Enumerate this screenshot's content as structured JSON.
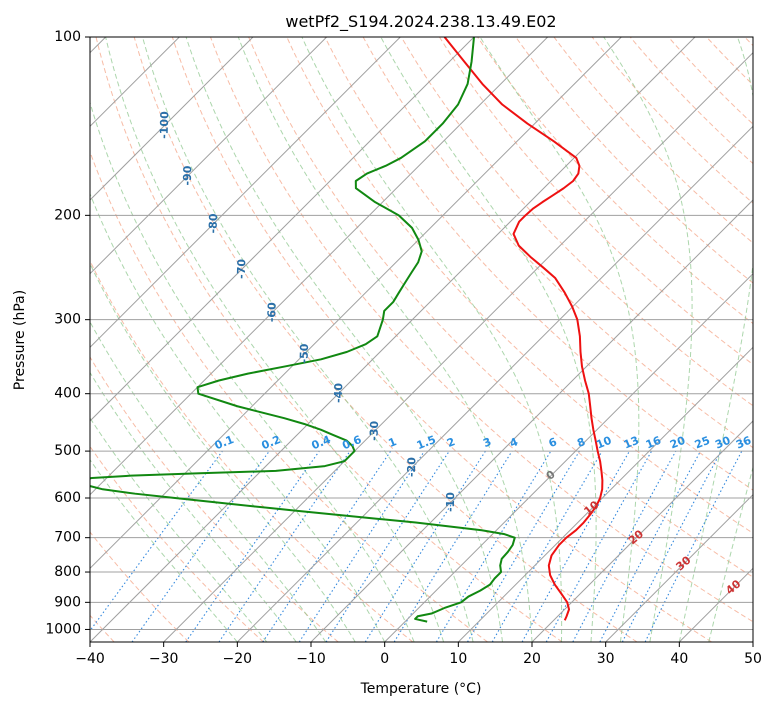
{
  "chart_data": {
    "type": "line",
    "title": "wetPf2_S194.2024.238.13.49.E02",
    "xlabel": "Temperature (°C)",
    "ylabel": "Pressure (hPa)",
    "xlim": [
      -40,
      50
    ],
    "ylim": [
      1050,
      100
    ],
    "y_scale": "log",
    "x_ticks": [
      -40,
      -30,
      -20,
      -10,
      0,
      10,
      20,
      30,
      40,
      50
    ],
    "x_tick_labels": [
      "−40",
      "−30",
      "−20",
      "−10",
      "0",
      "10",
      "20",
      "30",
      "40",
      "50"
    ],
    "y_ticks": [
      100,
      200,
      300,
      400,
      500,
      600,
      700,
      800,
      900,
      1000
    ],
    "y_tick_labels": [
      "100",
      "200",
      "300",
      "400",
      "500",
      "600",
      "700",
      "800",
      "900",
      "1000"
    ],
    "grid": true,
    "skew_t": true,
    "colors": {
      "temperature": "#ee1111",
      "dewpoint": "#118811",
      "isotherm": "#a0a0a0",
      "dry_adiabat": "#f4a080",
      "moist_adiabat": "#90c890",
      "mixing_ratio": "#3388dd",
      "isotherm_label": "#2a6fa8",
      "mixing_label": "#2a8fe0",
      "moist_label": "#cc3333",
      "zero_label": "#777777"
    },
    "series": [
      {
        "key": "temperature",
        "pressure": [
          965,
          950,
          925,
          900,
          870,
          840,
          810,
          780,
          750,
          720,
          700,
          680,
          660,
          640,
          620,
          600,
          580,
          560,
          540,
          520,
          500,
          480,
          460,
          440,
          420,
          400,
          380,
          360,
          340,
          320,
          300,
          285,
          270,
          255,
          245,
          235,
          225,
          215,
          205,
          200,
          195,
          190,
          185,
          180,
          175,
          170,
          165,
          160,
          150,
          140,
          130,
          120,
          110,
          100
        ],
        "temp": [
          21.5,
          21.2,
          20.6,
          19.4,
          17.4,
          15.3,
          13.4,
          11.9,
          10.9,
          10.5,
          10.5,
          10.8,
          10.8,
          10.6,
          10.3,
          9.7,
          8.8,
          7.6,
          6.2,
          4.7,
          3.0,
          1.3,
          -0.5,
          -2.3,
          -4.1,
          -6.0,
          -8.3,
          -10.6,
          -12.8,
          -15.0,
          -17.6,
          -20.1,
          -23.0,
          -26.3,
          -29.3,
          -32.5,
          -35.6,
          -37.9,
          -38.8,
          -38.8,
          -38.7,
          -38.3,
          -37.8,
          -37.3,
          -37.0,
          -37.3,
          -38.2,
          -39.7,
          -45.0,
          -51.0,
          -57.0,
          -62.5,
          -68.0,
          -74.0
        ]
      },
      {
        "key": "dewpoint",
        "pressure": [
          970,
          960,
          950,
          940,
          920,
          900,
          880,
          860,
          840,
          820,
          800,
          780,
          760,
          740,
          720,
          700,
          690,
          680,
          670,
          660,
          650,
          640,
          630,
          620,
          610,
          600,
          590,
          580,
          570,
          560,
          555,
          550,
          545,
          540,
          530,
          520,
          510,
          500,
          490,
          480,
          470,
          460,
          450,
          440,
          420,
          400,
          390,
          380,
          370,
          360,
          350,
          340,
          330,
          320,
          300,
          290,
          280,
          270,
          260,
          250,
          240,
          230,
          220,
          210,
          200,
          190,
          180,
          175,
          170,
          165,
          160,
          150,
          140,
          130,
          120,
          110,
          100
        ],
        "temp": [
          3.0,
          1.0,
          1.0,
          2.5,
          3.5,
          5.0,
          5.2,
          6.0,
          6.5,
          6.3,
          6.3,
          5.3,
          4.6,
          4.5,
          4.2,
          3.5,
          1.5,
          -2.0,
          -7.0,
          -12.0,
          -18.0,
          -24.0,
          -30.0,
          -36.0,
          -42.0,
          -48.0,
          -54.0,
          -59.0,
          -62.0,
          -63.0,
          -62.0,
          -57.0,
          -48.0,
          -38.0,
          -32.0,
          -30.0,
          -30.0,
          -30.0,
          -31.0,
          -32.5,
          -35.0,
          -37.5,
          -40.5,
          -44.0,
          -52.0,
          -59.0,
          -60.0,
          -58.0,
          -55.0,
          -51.0,
          -47.0,
          -44.5,
          -43.0,
          -42.5,
          -44.0,
          -45.0,
          -45.0,
          -45.5,
          -46.0,
          -46.5,
          -47.0,
          -48.0,
          -50.0,
          -52.5,
          -56.0,
          -61.0,
          -65.5,
          -66.5,
          -66.0,
          -64.5,
          -63.5,
          -62.5,
          -62.5,
          -63.0,
          -64.5,
          -67.0,
          -70.0
        ]
      }
    ],
    "isotherm_labels": [
      "-100",
      "-90",
      "-80",
      "-70",
      "-60",
      "-50",
      "-40",
      "-30",
      "-20",
      "-10"
    ],
    "mixing_ratio_labels": [
      "0.1",
      "0.2",
      "0.4",
      "0.6",
      "1",
      "1.5",
      "2",
      "3",
      "4",
      "6",
      "8",
      "10",
      "13",
      "16",
      "20",
      "25",
      "30",
      "36"
    ],
    "moist_adiabat_labels": [
      "0",
      "10",
      "20",
      "30",
      "40"
    ]
  }
}
